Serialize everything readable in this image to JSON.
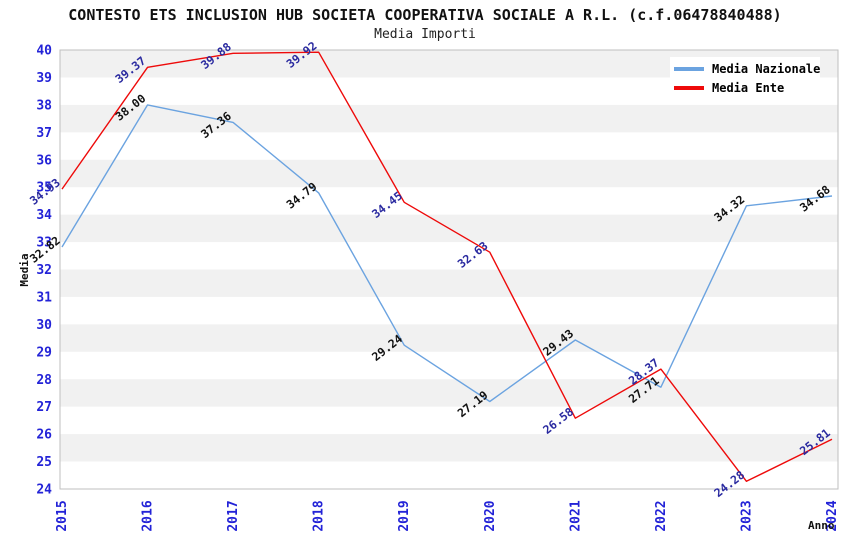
{
  "title": "CONTESTO ETS INCLUSION HUB SOCIETA COOPERATIVA SOCIALE A R.L. (c.f.06478840488)",
  "subtitle": "Media Importi",
  "legend": [
    {
      "label": "Media Nazionale",
      "color": "#6ba3e0"
    },
    {
      "label": "Media Ente",
      "color": "#ee0a0a"
    }
  ],
  "axes": {
    "y_title": "Media",
    "x_title": "Anno",
    "y_ticks": [
      24,
      25,
      26,
      27,
      28,
      29,
      30,
      31,
      32,
      33,
      34,
      35,
      36,
      37,
      38,
      39,
      40
    ],
    "x_ticks": [
      "2015",
      "2016",
      "2017",
      "2018",
      "2019",
      "2020",
      "2021",
      "2022",
      "2023",
      "2024"
    ]
  },
  "colors": {
    "tick_blue": "#2323d7",
    "stripe": "#f1f1f1",
    "plot_border": "#bfbfbf",
    "blue_series_label": "#111111",
    "red_series_label": "#2a2aa0"
  },
  "chart_data": {
    "type": "line",
    "title": "CONTESTO ETS INCLUSION HUB SOCIETA COOPERATIVA SOCIALE A R.L. (c.f.06478840488)",
    "subtitle": "Media Importi",
    "xlabel": "Anno",
    "ylabel": "Media",
    "ylim": [
      24,
      40
    ],
    "grid": "horizontal-stripes-alternating",
    "legend_position": "top-right",
    "x": [
      "2015",
      "2016",
      "2017",
      "2018",
      "2019",
      "2020",
      "2021",
      "2022",
      "2023",
      "2024"
    ],
    "series": [
      {
        "name": "Media Nazionale",
        "color": "#6ba3e0",
        "label_color": "#111111",
        "values": [
          32.82,
          38.0,
          37.36,
          34.79,
          29.24,
          27.19,
          29.43,
          27.71,
          34.32,
          34.68
        ]
      },
      {
        "name": "Media Ente",
        "color": "#ee0a0a",
        "label_color": "#2a2aa0",
        "values": [
          34.93,
          39.37,
          39.88,
          39.92,
          34.45,
          32.63,
          26.58,
          28.37,
          24.28,
          25.81
        ]
      }
    ]
  }
}
